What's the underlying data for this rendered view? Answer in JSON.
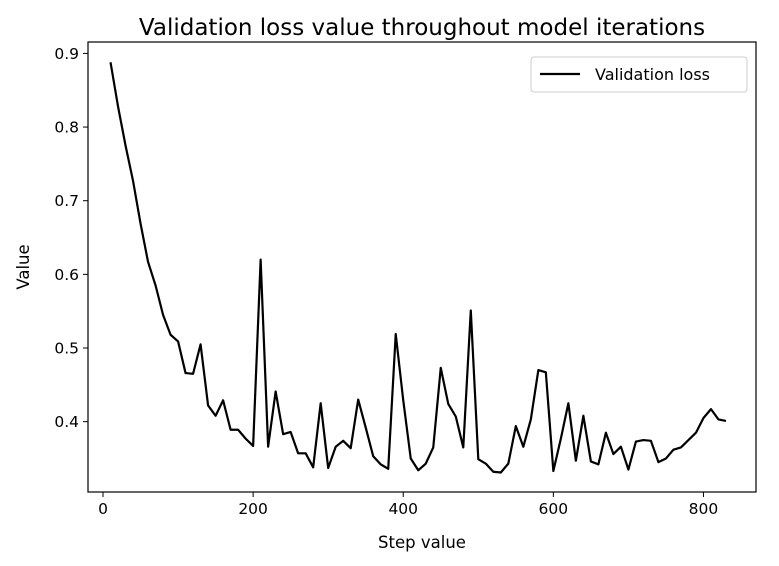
{
  "chart_data": {
    "type": "line",
    "title": "Validation loss value throughout model iterations",
    "xlabel": "Step value",
    "ylabel": "Value",
    "xlim": [
      -20,
      870
    ],
    "ylim": [
      0.3045,
      0.9155
    ],
    "xticks": [
      0,
      200,
      400,
      600,
      800
    ],
    "yticks": [
      0.4,
      0.5,
      0.6,
      0.7,
      0.8,
      0.9
    ],
    "grid": false,
    "legend": "upper-right",
    "series": [
      {
        "name": "Validation loss",
        "color": "#000000",
        "x": [
          10,
          20,
          30,
          40,
          50,
          60,
          70,
          80,
          90,
          100,
          110,
          120,
          130,
          140,
          150,
          160,
          170,
          180,
          190,
          200,
          210,
          220,
          230,
          240,
          250,
          260,
          270,
          280,
          290,
          300,
          310,
          320,
          330,
          340,
          350,
          360,
          370,
          380,
          390,
          400,
          410,
          420,
          430,
          440,
          450,
          460,
          470,
          480,
          490,
          500,
          510,
          520,
          530,
          540,
          550,
          560,
          570,
          580,
          590,
          600,
          610,
          620,
          630,
          640,
          650,
          660,
          670,
          680,
          690,
          700,
          710,
          720,
          730,
          740,
          750,
          760,
          770,
          780,
          790,
          800,
          810,
          820,
          830
        ],
        "y": [
          0.888,
          0.828,
          0.775,
          0.727,
          0.669,
          0.617,
          0.585,
          0.545,
          0.518,
          0.509,
          0.466,
          0.465,
          0.505,
          0.422,
          0.408,
          0.429,
          0.389,
          0.389,
          0.377,
          0.367,
          0.62,
          0.366,
          0.441,
          0.383,
          0.386,
          0.357,
          0.357,
          0.338,
          0.425,
          0.337,
          0.366,
          0.374,
          0.364,
          0.43,
          0.392,
          0.353,
          0.342,
          0.336,
          0.519,
          0.429,
          0.35,
          0.334,
          0.343,
          0.365,
          0.473,
          0.424,
          0.407,
          0.365,
          0.551,
          0.349,
          0.343,
          0.332,
          0.331,
          0.343,
          0.394,
          0.366,
          0.403,
          0.47,
          0.467,
          0.333,
          0.377,
          0.425,
          0.347,
          0.408,
          0.346,
          0.342,
          0.385,
          0.356,
          0.366,
          0.335,
          0.373,
          0.375,
          0.374,
          0.345,
          0.35,
          0.362,
          0.365,
          0.375,
          0.385,
          0.405,
          0.417,
          0.403,
          0.401
        ]
      }
    ]
  }
}
